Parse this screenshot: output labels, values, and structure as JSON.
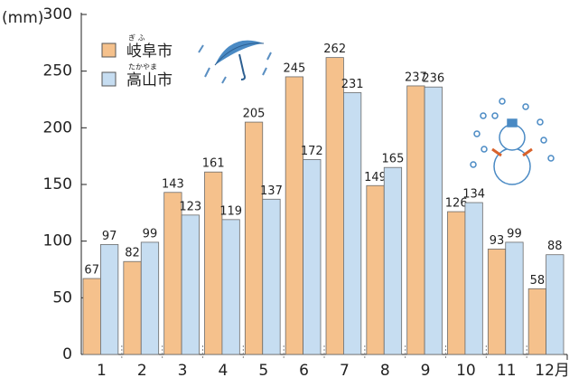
{
  "chart_data": {
    "type": "bar",
    "y_label": "(mm)",
    "categories": [
      "1",
      "2",
      "3",
      "4",
      "5",
      "6",
      "7",
      "8",
      "9",
      "10",
      "11",
      "12月"
    ],
    "series": [
      {
        "name": "岐阜市",
        "reading": "ぎ ふ",
        "color": "#f5c18c",
        "values": [
          67,
          82,
          143,
          161,
          205,
          245,
          262,
          149,
          237,
          126,
          93,
          58
        ]
      },
      {
        "name": "高山市",
        "reading": "たかやま",
        "color": "#c6ddf1",
        "values": [
          97,
          99,
          123,
          119,
          137,
          172,
          231,
          165,
          236,
          134,
          99,
          88
        ]
      }
    ],
    "ylim": [
      0,
      300
    ],
    "yticks": [
      0,
      50,
      100,
      150,
      200,
      250,
      300
    ]
  }
}
